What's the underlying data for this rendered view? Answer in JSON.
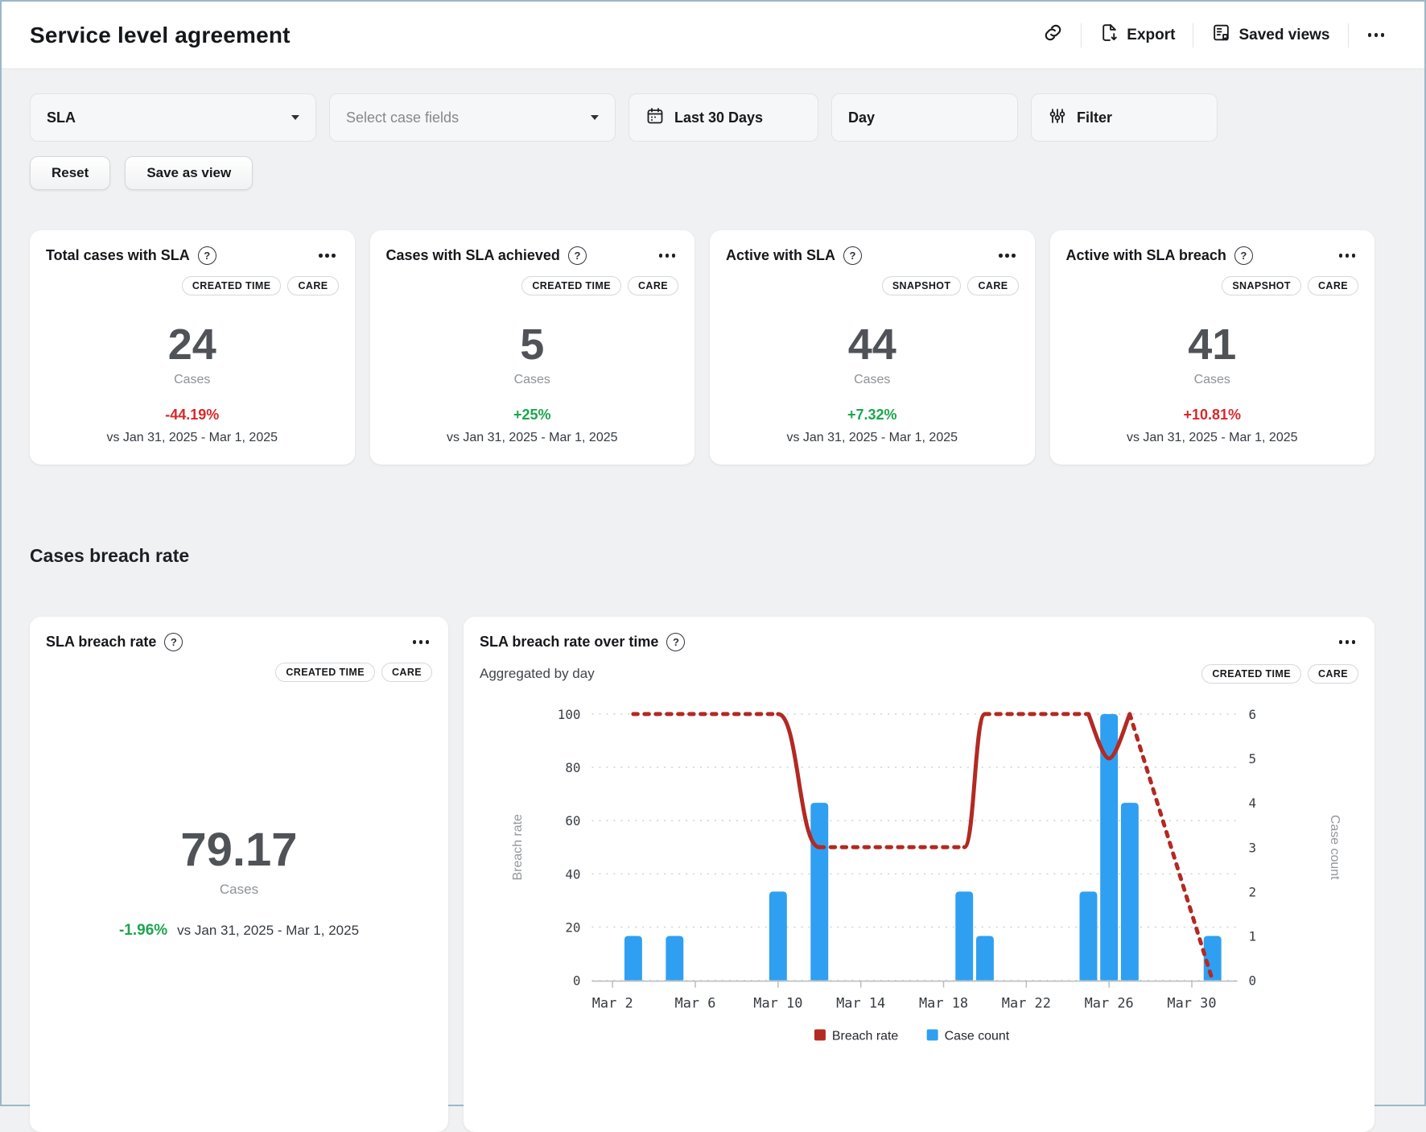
{
  "header": {
    "title": "Service level agreement",
    "export_label": "Export",
    "saved_views_label": "Saved views"
  },
  "filters": {
    "metric_value": "SLA",
    "case_fields_placeholder": "Select case fields",
    "date_range": "Last 30 Days",
    "granularity": "Day",
    "filter_label": "Filter",
    "reset_label": "Reset",
    "save_view_label": "Save as view"
  },
  "colors": {
    "negative_red": "#d7282a",
    "positive_green": "#1ba64e",
    "bar_blue": "#2f9ff2",
    "line_red": "#b22a22"
  },
  "kpi_cards": [
    {
      "title": "Total cases with SLA",
      "badges": [
        "CREATED TIME",
        "CARE"
      ],
      "value": "24",
      "unit": "Cases",
      "change": "-44.19%",
      "change_color": "#d7282a",
      "comparison": "vs Jan 31, 2025 - Mar 1, 2025"
    },
    {
      "title": "Cases with SLA achieved",
      "badges": [
        "CREATED TIME",
        "CARE"
      ],
      "value": "5",
      "unit": "Cases",
      "change": "+25%",
      "change_color": "#1ba64e",
      "comparison": "vs Jan 31, 2025 - Mar 1, 2025"
    },
    {
      "title": "Active with SLA",
      "badges": [
        "SNAPSHOT",
        "CARE"
      ],
      "value": "44",
      "unit": "Cases",
      "change": "+7.32%",
      "change_color": "#1ba64e",
      "comparison": "vs Jan 31, 2025 - Mar 1, 2025"
    },
    {
      "title": "Active with SLA breach",
      "badges": [
        "SNAPSHOT",
        "CARE"
      ],
      "value": "41",
      "unit": "Cases",
      "change": "+10.81%",
      "change_color": "#d7282a",
      "comparison": "vs Jan 31, 2025 - Mar 1, 2025"
    }
  ],
  "section": {
    "breach_rate_title": "Cases breach rate"
  },
  "breach_card": {
    "title": "SLA breach rate",
    "badges": [
      "CREATED TIME",
      "CARE"
    ],
    "value": "79.17",
    "unit": "Cases",
    "change": "-1.96%",
    "change_color": "#1ba64e",
    "comparison": "vs Jan 31, 2025 - Mar 1, 2025"
  },
  "chart_card": {
    "title": "SLA breach rate over time",
    "subtitle": "Aggregated by day",
    "badges": [
      "CREATED TIME",
      "CARE"
    ]
  },
  "chart_data": {
    "type": "bar+line",
    "title": "SLA breach rate over time",
    "aggregation": "Aggregated by day",
    "x_ticks": [
      "Mar 2",
      "Mar 6",
      "Mar 10",
      "Mar 14",
      "Mar 18",
      "Mar 22",
      "Mar 26",
      "Mar 30"
    ],
    "left_axis": {
      "label": "Breach rate",
      "min": 0,
      "max": 100,
      "ticks": [
        0,
        20,
        40,
        60,
        80,
        100
      ]
    },
    "right_axis": {
      "label": "Case count",
      "min": 0,
      "max": 6,
      "ticks": [
        0,
        1,
        2,
        3,
        4,
        5,
        6
      ]
    },
    "bars": {
      "name": "Case count",
      "color": "#2f9ff2",
      "points": [
        {
          "date": "Mar 3",
          "day": 3,
          "count": 1
        },
        {
          "date": "Mar 5",
          "day": 5,
          "count": 1
        },
        {
          "date": "Mar 10",
          "day": 10,
          "count": 2
        },
        {
          "date": "Mar 12",
          "day": 12,
          "count": 4
        },
        {
          "date": "Mar 19",
          "day": 19,
          "count": 2
        },
        {
          "date": "Mar 20",
          "day": 20,
          "count": 1
        },
        {
          "date": "Mar 25",
          "day": 25,
          "count": 2
        },
        {
          "date": "Mar 26",
          "day": 26,
          "count": 6
        },
        {
          "date": "Mar 27",
          "day": 27,
          "count": 4
        },
        {
          "date": "Mar 31",
          "day": 31,
          "count": 1
        }
      ]
    },
    "line": {
      "name": "Breach rate",
      "color": "#b22a22",
      "unit": "%",
      "segments": [
        {
          "style": "dotted",
          "points": [
            [
              3,
              100
            ],
            [
              10,
              100
            ]
          ]
        },
        {
          "style": "solid",
          "points": [
            [
              10,
              100
            ],
            [
              12,
              50
            ]
          ]
        },
        {
          "style": "dotted",
          "points": [
            [
              12,
              50
            ],
            [
              19,
              50
            ]
          ]
        },
        {
          "style": "solid",
          "points": [
            [
              19,
              50
            ],
            [
              20,
              100
            ]
          ]
        },
        {
          "style": "dotted",
          "points": [
            [
              20,
              100
            ],
            [
              25,
              100
            ]
          ]
        },
        {
          "style": "solid",
          "points": [
            [
              25,
              100
            ],
            [
              26,
              83.33
            ],
            [
              27,
              100
            ]
          ]
        },
        {
          "style": "dotted",
          "points": [
            [
              27,
              100
            ],
            [
              31,
              0
            ]
          ]
        }
      ]
    },
    "legend": [
      {
        "label": "Breach rate",
        "color": "#b22a22"
      },
      {
        "label": "Case count",
        "color": "#2f9ff2"
      }
    ],
    "grid": {
      "horizontal": "dotted"
    },
    "legend_position": "bottom"
  }
}
